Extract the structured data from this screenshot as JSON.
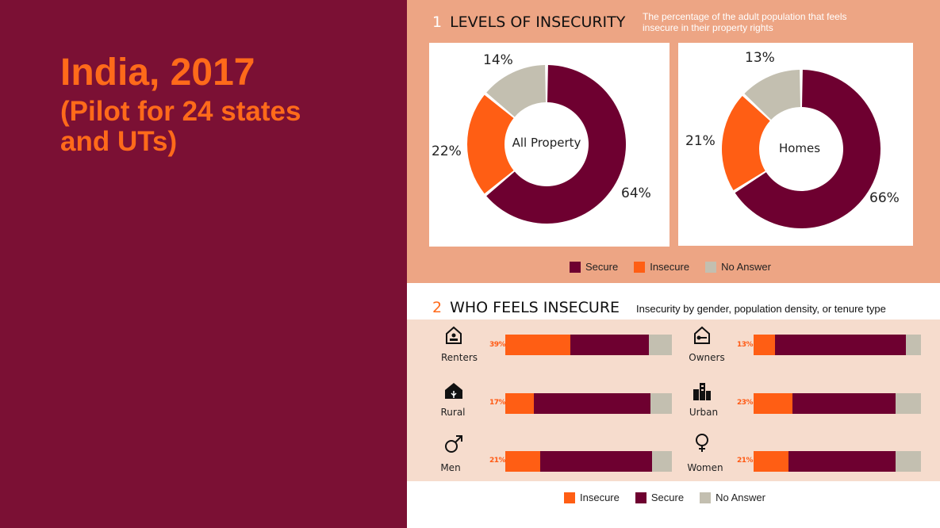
{
  "title": {
    "line1": "India, 2017",
    "line2": "(Pilot for 24 states and UTs)"
  },
  "colors": {
    "secure": "#6e0030",
    "insecure": "#ff5e14",
    "no_answer": "#c3bfb0",
    "background": "#7b1034",
    "accent": "#ff6a1a"
  },
  "section1": {
    "number": "1",
    "heading": "LEVELS OF INSECURITY",
    "description": "The percentage of the adult population that feels insecure in their property rights",
    "legend": [
      "Secure",
      "Insecure",
      "No Answer"
    ]
  },
  "section2": {
    "number": "2",
    "heading": "WHO FEELS INSECURE",
    "description": "Insecurity by gender, population density, or tenure type",
    "legend": [
      "Insecure",
      "Secure",
      "No Answer"
    ]
  },
  "chart_data": [
    {
      "type": "pie",
      "title": "All Property",
      "categories": [
        "Secure",
        "Insecure",
        "No Answer"
      ],
      "values": [
        64,
        22,
        14
      ],
      "labels": [
        "64%",
        "22%",
        "14%"
      ]
    },
    {
      "type": "pie",
      "title": "Homes",
      "categories": [
        "Secure",
        "Insecure",
        "No Answer"
      ],
      "values": [
        66,
        21,
        13
      ],
      "labels": [
        "66%",
        "21%",
        "13%"
      ]
    },
    {
      "type": "bar",
      "stacked": true,
      "categories": [
        "Renters",
        "Owners",
        "Rural",
        "Urban",
        "Men",
        "Women"
      ],
      "series": [
        {
          "name": "Insecure",
          "values": [
            39,
            13,
            17,
            23,
            21,
            21
          ]
        },
        {
          "name": "Secure",
          "values": [
            47,
            78,
            70,
            62,
            67,
            64
          ]
        },
        {
          "name": "No Answer",
          "values": [
            14,
            9,
            13,
            15,
            12,
            15
          ]
        }
      ],
      "labels": [
        "39%",
        "13%",
        "17%",
        "23%",
        "21%",
        "21%"
      ]
    }
  ],
  "groups": [
    {
      "label": "Renters",
      "icon": "renters-house-icon"
    },
    {
      "label": "Owners",
      "icon": "owners-key-house-icon"
    },
    {
      "label": "Rural",
      "icon": "rural-house-icon"
    },
    {
      "label": "Urban",
      "icon": "urban-buildings-icon"
    },
    {
      "label": "Men",
      "icon": "male-symbol-icon"
    },
    {
      "label": "Women",
      "icon": "female-symbol-icon"
    }
  ]
}
